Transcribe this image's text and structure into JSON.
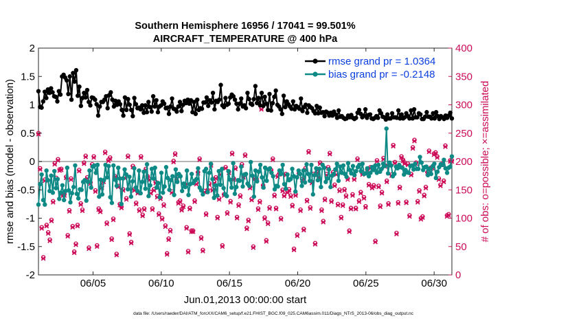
{
  "chart_data": {
    "type": "line",
    "title": "Southern Hemisphere 16956 / 17041 = 99.501%",
    "subtitle": "AIRCRAFT_TEMPERATURE @ 400 hPa",
    "xlabel": "Jun.01,2013 00:00:00 start",
    "ylabel": "rmse and bias (model - observation)",
    "y2label": "# of obs: o=possible; ×=assimilated",
    "footnote": "data file: /Users/raeder/DAI/ATM_forcXX/CAM6_setup/f.e21.FHIST_BGC.f09_025.CAM6assim.011/Diags_NTrS_2013-06/obs_diag_output.nc",
    "xlim": [
      1,
      31.3
    ],
    "ylim": [
      -2,
      2
    ],
    "y2lim": [
      0,
      400
    ],
    "xticks": [
      5,
      10,
      15,
      20,
      25,
      30
    ],
    "xtick_labels": [
      "06/05",
      "06/10",
      "06/15",
      "06/20",
      "06/25",
      "06/30"
    ],
    "yticks": [
      -2,
      -1.5,
      -1,
      -0.5,
      0,
      0.5,
      1,
      1.5,
      2
    ],
    "ytick_labels": [
      "-2",
      "-1.5",
      "-1",
      "-0.5",
      "0",
      "0.5",
      "1",
      "1.5",
      "2"
    ],
    "y2ticks": [
      0,
      50,
      100,
      150,
      200,
      250,
      300,
      350,
      400
    ],
    "y2tick_labels": [
      "0",
      "50",
      "100",
      "150",
      "200",
      "250",
      "300",
      "350",
      "400"
    ],
    "legend_location": "top-right",
    "series": [
      {
        "name": "rmse grand pr = 1.0364",
        "color": "#000000",
        "axis": "left",
        "values": [
          1.24,
          0.96,
          0.95,
          1.06,
          1.23,
          1.12,
          1.27,
          1.21,
          1.29,
          1.22,
          1.15,
          1.14,
          1.06,
          1.24,
          1.18,
          1.5,
          1.53,
          1.48,
          1.43,
          1.19,
          1.5,
          1.09,
          1.56,
          1.41,
          1.61,
          1.16,
          1.32,
          0.98,
          1.12,
          1.21,
          1.13,
          1.26,
          1.05,
          0.99,
          1.13,
          1.12,
          1.09,
          1.01,
          0.81,
          0.97,
          1.05,
          1.05,
          1.09,
          1.15,
          0.94,
          1.17,
          1.22,
          1.09,
          0.97,
          1.07,
          1.0,
          1.06,
          1.01,
          0.91,
          0.81,
          1.13,
          0.91,
          1.1,
          1.0,
          0.91,
          0.8,
          1.12,
          1.01,
          0.94,
          0.95,
          0.92,
          0.99,
          0.86,
          0.99,
          0.87,
          1.05,
          0.96,
          0.88,
          1.15,
          0.97,
          1.08,
          0.87,
          0.97,
          0.99,
          1.06,
          1.02,
          0.94,
          0.95,
          0.84,
          0.97,
          1.11,
          0.93,
          0.92,
          0.88,
          0.97,
          1.05,
          0.89,
          1.0,
          1.07,
          1.03,
          1.09,
          1.02,
          1.08,
          0.87,
          1.05,
          0.84,
          1.09,
          0.91,
          0.94,
          0.93,
          1.04,
          1.04,
          1.13,
          0.98,
          1.08,
          1.04,
          1.21,
          0.92,
          1.07,
          1.05,
          1.09,
          1.35,
          0.99,
          0.96,
          1.12,
          1.0,
          1.02,
          1.13,
          1.18,
          1.15,
          1.09,
          1.02,
          0.92,
          1.02,
          1.11,
          0.97,
          0.99,
          0.94,
          1.21,
          1.1,
          1.02,
          1.0,
          1.1,
          1.33,
          1.03,
          1.12,
          0.99,
          1.21,
          0.98,
          1.14,
          1.02,
          0.91,
          1.19,
          0.9,
          1.03,
          1.14,
          1.25,
          1.0,
          0.97,
          0.92,
          0.84,
          1.16,
          0.96,
          1.06,
          1.01,
          0.97,
          0.93,
          1.06,
          0.92,
          0.98,
          0.96,
          0.93,
          1.11,
          0.89,
          0.96,
          1.0,
          0.86,
          0.99,
          0.96,
          0.94,
          0.89,
          0.85,
          0.98,
          0.85,
          0.95,
          0.86,
          0.87,
          0.8,
          0.88,
          0.86,
          0.81,
          0.86,
          0.81,
          0.88,
          0.83,
          0.77,
          0.9,
          0.79,
          0.8,
          0.77,
          0.75,
          0.76,
          0.81,
          0.78,
          0.82,
          0.77,
          0.75,
          0.77,
          0.86,
          0.91,
          0.84,
          0.78,
          0.81,
          0.92,
          0.77,
          0.82,
          0.83,
          0.76,
          0.75,
          0.77,
          0.8,
          0.77,
          0.9,
          0.85,
          0.79,
          0.78,
          0.74,
          0.83,
          0.76,
          0.76,
          0.85,
          0.78,
          0.78,
          0.77,
          0.9,
          0.76,
          0.83,
          0.76,
          0.78,
          0.85,
          0.8,
          0.76,
          0.9,
          0.76,
          0.92,
          0.78,
          0.78,
          0.85,
          0.83,
          0.75,
          0.75,
          0.79,
          0.87,
          0.79,
          0.79,
          0.76,
          0.85,
          0.76,
          0.87,
          0.8,
          0.75,
          0.8,
          0.78,
          0.75,
          0.81,
          0.77,
          0.81,
          0.86,
          0.76
        ]
      },
      {
        "name": "bias grand pr = -0.2148",
        "color": "#0e8a86",
        "axis": "left",
        "values": [
          -0.76,
          -0.4,
          -0.23,
          -0.68,
          -0.76,
          -0.16,
          -0.33,
          -0.52,
          -0.25,
          -0.55,
          -0.17,
          -0.47,
          -0.31,
          -0.66,
          -0.55,
          -0.42,
          -0.68,
          -0.52,
          -0.11,
          -0.51,
          -0.72,
          -0.56,
          -0.45,
          -0.07,
          -0.57,
          -0.65,
          -0.49,
          -0.5,
          -0.36,
          -0.33,
          -0.69,
          -0.36,
          -0.16,
          -0.46,
          -0.09,
          -0.07,
          -0.2,
          -0.06,
          -0.62,
          -0.32,
          -0.58,
          -0.33,
          -0.06,
          -0.28,
          -0.08,
          -0.63,
          -0.73,
          -0.07,
          -0.32,
          -0.43,
          -0.11,
          -0.3,
          -0.75,
          -0.3,
          -0.14,
          -0.23,
          -0.49,
          -0.27,
          -0.62,
          -0.35,
          -0.12,
          -0.46,
          -0.52,
          -0.16,
          -0.56,
          -0.36,
          -0.18,
          -0.48,
          -0.05,
          -0.61,
          -0.42,
          -0.13,
          -0.3,
          -0.11,
          -0.46,
          -0.38,
          -0.63,
          -0.2,
          -0.55,
          -0.44,
          -0.1,
          -0.29,
          -0.5,
          -0.33,
          -0.26,
          -0.59,
          -0.14,
          -0.36,
          -0.22,
          -0.26,
          -0.52,
          -0.39,
          -0.45,
          -0.16,
          -0.59,
          -0.4,
          -0.22,
          -0.38,
          -0.34,
          -0.31,
          -0.12,
          -0.46,
          -0.51,
          -0.58,
          -0.17,
          -0.13,
          -0.54,
          -0.2,
          -0.04,
          -0.31,
          -0.64,
          -0.42,
          -0.6,
          -0.17,
          -0.41,
          -0.13,
          -0.47,
          -0.58,
          -0.61,
          -0.17,
          -0.32,
          -0.46,
          -0.03,
          -0.57,
          -0.45,
          -0.33,
          -0.34,
          -0.09,
          -0.44,
          -0.23,
          -0.22,
          -0.39,
          -0.43,
          -0.01,
          -0.25,
          -0.62,
          -0.16,
          -0.35,
          -0.18,
          -0.06,
          -0.28,
          -0.46,
          -0.11,
          -0.34,
          -0.14,
          -0.12,
          -0.2,
          -0.26,
          -0.49,
          -0.43,
          -0.44,
          -0.16,
          -0.22,
          -0.06,
          -0.4,
          -0.48,
          -0.23,
          -0.33,
          -0.31,
          -0.13,
          -0.26,
          -0.53,
          -0.28,
          -0.16,
          -0.22,
          -0.43,
          -0.16,
          -0.37,
          -0.05,
          -0.22,
          -0.34,
          -0.06,
          -0.58,
          -0.24,
          -0.12,
          -0.33,
          -0.13,
          -0.45,
          -0.06,
          -0.11,
          -0.36,
          -0.3,
          -0.14,
          -0.45,
          -0.25,
          -0.22,
          -0.14,
          -0.04,
          -0.34,
          -0.09,
          -0.2,
          -0.07,
          -0.22,
          -0.27,
          -0.03,
          -0.15,
          -0.21,
          -0.08,
          -0.24,
          -0.17,
          -0.1,
          -0.06,
          -0.17,
          -0.04,
          -0.22,
          -0.21,
          -0.12,
          -0.26,
          -0.2,
          -0.1,
          -0.15,
          -0.07,
          -0.2,
          -0.06,
          -0.18,
          -0.13,
          -0.04,
          -0.08,
          0.58,
          -0.21,
          -0.02,
          -0.07,
          -0.26,
          -0.22,
          -0.09,
          -0.12,
          -0.06,
          -0.1,
          -0.11,
          -0.23,
          -0.15,
          -0.19,
          -0.2,
          -0.08,
          -0.07,
          -0.14,
          -0.04,
          -0.13,
          -0.13,
          0.08,
          -0.02,
          -0.15,
          -0.1,
          -0.09,
          -0.24,
          -0.13,
          -0.22,
          -0.08,
          -0.04,
          -0.29,
          -0.18,
          -0.1,
          -0.05,
          -0.06,
          0.03,
          -0.12,
          -0.2,
          -0.11,
          -0.09,
          0.09
        ]
      },
      {
        "name": "# possible",
        "color": "#cc0a57",
        "axis": "right",
        "values": [
          250,
          188,
          84,
          31,
          168,
          88,
          75,
          62,
          97,
          130,
          197,
          171,
          204,
          186,
          187,
          142,
          142,
          173,
          70,
          114,
          170,
          86,
          41,
          55,
          88,
          185,
          126,
          115,
          198,
          210,
          172,
          48,
          163,
          195,
          209,
          149,
          52,
          117,
          113,
          156,
          166,
          217,
          92,
          203,
          207,
          64,
          99,
          174,
          37,
          157,
          125,
          120,
          151,
          173,
          135,
          210,
          73,
          58,
          192,
          151,
          127,
          146,
          115,
          209,
          106,
          117,
          187,
          174,
          169,
          146,
          117,
          151,
          164,
          139,
          108,
          136,
          100,
          124,
          87,
          38,
          64,
          79,
          147,
          201,
          214,
          172,
          128,
          131,
          116,
          122,
          160,
          84,
          42,
          118,
          78,
          78,
          131,
          162,
          181,
          205,
          66,
          44,
          148,
          108,
          150,
          161,
          195,
          151,
          164,
          172,
          102,
          135,
          179,
          52,
          142,
          190,
          110,
          182,
          130,
          215,
          170,
          189,
          102,
          124,
          140,
          195,
          174,
          212,
          83,
          97,
          155,
          134,
          50,
          171,
          169,
          117,
          130,
          294,
          158,
          101,
          61,
          92,
          119,
          185,
          205,
          141,
          118,
          175,
          179,
          100,
          150,
          141,
          178,
          147,
          151,
          140,
          123,
          46,
          142,
          71,
          179,
          115,
          169,
          81,
          188,
          132,
          218,
          119,
          164,
          178,
          56,
          181,
          174,
          198,
          115,
          95,
          134,
          178,
          190,
          215,
          131,
          181,
          159,
          179,
          125,
          150,
          102,
          124,
          151,
          140,
          170,
          78,
          118,
          142,
          170,
          118,
          205,
          131,
          146,
          179,
          137,
          121,
          186,
          160,
          190,
          155,
          158,
          60,
          202,
          157,
          122,
          146,
          206,
          193,
          166,
          126,
          194,
          177,
          229,
          199,
          74,
          128,
          155,
          209,
          203,
          198,
          129,
          196,
          105,
          178,
          225,
          238,
          198,
          130,
          149,
          100,
          103,
          141,
          155,
          181,
          219,
          189,
          190,
          214,
          216,
          209,
          170,
          159,
          196,
          166,
          228,
          105,
          107,
          202,
          202
        ]
      },
      {
        "name": "# assimilated",
        "color": "#cc0a57",
        "axis": "right",
        "values": [
          248,
          186,
          82,
          29,
          166,
          86,
          73,
          60,
          95,
          128,
          195,
          169,
          202,
          184,
          185,
          140,
          140,
          171,
          68,
          112,
          168,
          84,
          39,
          53,
          86,
          183,
          124,
          113,
          196,
          208,
          170,
          46,
          161,
          193,
          207,
          147,
          50,
          115,
          111,
          154,
          164,
          215,
          90,
          201,
          205,
          62,
          97,
          172,
          35,
          155,
          123,
          118,
          149,
          171,
          133,
          208,
          71,
          56,
          190,
          149,
          125,
          144,
          113,
          207,
          104,
          115,
          185,
          172,
          167,
          144,
          115,
          149,
          162,
          137,
          106,
          134,
          98,
          122,
          85,
          36,
          62,
          77,
          145,
          199,
          212,
          170,
          126,
          129,
          114,
          120,
          158,
          82,
          40,
          116,
          76,
          76,
          129,
          160,
          179,
          203,
          64,
          42,
          146,
          106,
          148,
          159,
          193,
          149,
          162,
          170,
          100,
          133,
          177,
          50,
          140,
          188,
          108,
          180,
          128,
          213,
          168,
          187,
          100,
          122,
          138,
          193,
          172,
          210,
          81,
          95,
          153,
          132,
          48,
          169,
          167,
          115,
          128,
          292,
          156,
          99,
          59,
          90,
          117,
          183,
          203,
          139,
          116,
          173,
          177,
          98,
          148,
          139,
          176,
          145,
          149,
          138,
          121,
          44,
          140,
          69,
          177,
          113,
          167,
          79,
          186,
          130,
          216,
          117,
          162,
          176,
          54,
          179,
          172,
          196,
          113,
          93,
          132,
          176,
          188,
          213,
          129,
          179,
          157,
          177,
          123,
          148,
          100,
          122,
          149,
          138,
          168,
          76,
          116,
          140,
          168,
          116,
          203,
          129,
          144,
          177,
          135,
          119,
          184,
          158,
          188,
          153,
          156,
          58,
          200,
          155,
          120,
          144,
          204,
          191,
          164,
          124,
          192,
          175,
          227,
          197,
          72,
          126,
          153,
          207,
          201,
          196,
          127,
          194,
          103,
          176,
          223,
          236,
          196,
          128,
          147,
          98,
          101,
          139,
          153,
          179,
          217,
          187,
          188,
          212,
          214,
          207,
          168,
          157,
          194,
          164,
          226,
          103,
          105,
          200,
          200
        ]
      }
    ]
  }
}
